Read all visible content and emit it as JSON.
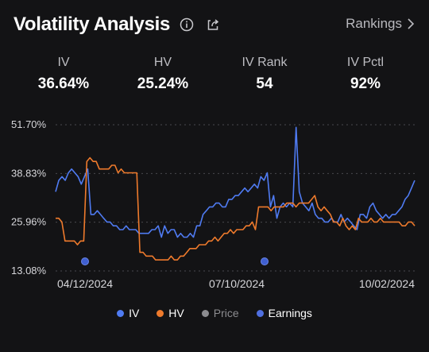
{
  "header": {
    "title": "Volatility Analysis",
    "rankings_label": "Rankings"
  },
  "metrics": [
    {
      "label": "IV",
      "value": "36.64%"
    },
    {
      "label": "HV",
      "value": "25.24%"
    },
    {
      "label": "IV Rank",
      "value": "54"
    },
    {
      "label": "IV Pctl",
      "value": "92%"
    }
  ],
  "chart_data": {
    "type": "line",
    "y_ticks": [
      "51.70%",
      "38.83%",
      "25.96%",
      "13.08%"
    ],
    "ylim": [
      13.08,
      51.7
    ],
    "x_ticks": [
      "04/12/2024",
      "07/10/2024",
      "10/02/2024"
    ],
    "grid": true,
    "series": [
      {
        "name": "IV",
        "color": "#4f7bf2",
        "values": [
          34,
          37,
          38,
          37,
          39,
          40,
          39,
          38,
          36,
          38,
          40,
          28,
          28,
          29,
          28,
          27,
          26,
          26,
          25,
          25,
          24,
          24,
          25,
          24,
          24,
          24,
          23,
          23,
          23,
          23,
          24,
          24,
          25,
          22,
          25,
          23,
          24,
          24,
          22,
          23,
          22,
          22,
          23,
          22,
          25,
          25,
          28,
          29,
          30,
          30,
          31,
          31,
          30,
          30,
          32,
          32,
          33,
          33,
          34,
          35,
          34,
          35,
          36,
          35,
          38,
          37,
          39,
          30,
          33,
          27,
          30,
          31,
          30,
          31,
          30,
          51,
          34,
          31,
          30,
          29,
          31,
          28,
          27,
          27,
          26,
          26,
          27,
          26,
          26,
          28,
          26,
          27,
          26,
          25,
          24,
          28,
          28,
          27,
          30,
          31,
          29,
          28,
          27,
          28,
          27,
          28,
          28,
          29,
          30,
          32,
          33,
          35,
          37
        ]
      },
      {
        "name": "HV",
        "color": "#ee7a2c",
        "values": [
          27,
          27,
          26,
          21,
          21,
          21,
          21,
          20,
          21,
          21,
          42,
          43,
          42,
          42,
          40,
          40,
          40,
          40,
          41,
          41,
          39,
          40,
          39,
          39,
          39,
          39,
          39,
          18,
          18,
          17,
          17,
          17,
          16,
          16,
          16,
          16,
          16,
          17,
          16,
          16,
          17,
          17,
          18,
          19,
          19,
          19,
          20,
          20,
          20,
          21,
          21,
          22,
          21,
          22,
          23,
          23,
          24,
          23,
          24,
          24,
          24,
          25,
          25,
          26,
          24,
          30,
          30,
          30,
          30,
          29,
          30,
          30,
          30,
          30,
          31,
          31,
          31,
          30,
          31,
          31,
          31,
          31,
          32,
          33,
          30,
          29,
          30,
          29,
          28,
          26,
          26,
          25,
          27,
          25,
          24,
          25,
          24,
          27,
          26,
          26,
          26,
          27,
          26,
          26,
          27,
          26,
          26,
          26,
          26,
          26,
          26,
          25,
          25,
          26,
          26,
          25
        ]
      }
    ],
    "earnings_markers": 2,
    "legend": [
      "IV",
      "HV",
      "Price",
      "Earnings"
    ],
    "legend_colors": [
      "#4f7bf2",
      "#ee7a2c",
      "#8c8c90",
      "#4f6fe0"
    ]
  }
}
